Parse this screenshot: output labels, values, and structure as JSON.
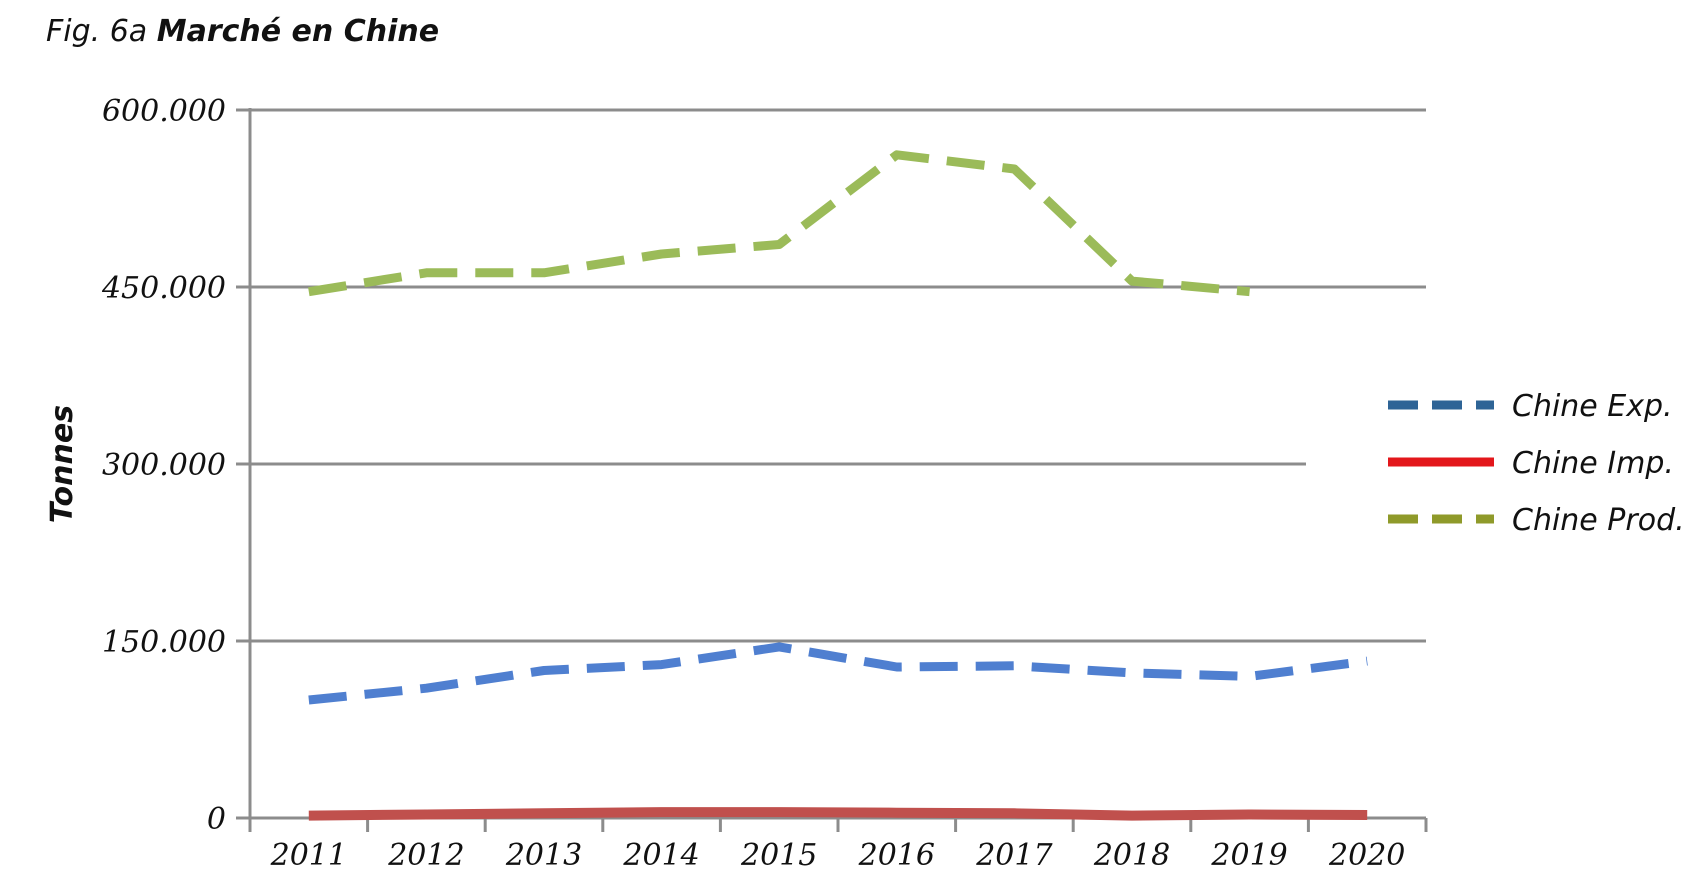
{
  "figure": {
    "prefix": "Fig. 6a",
    "title": "Marché en Chine"
  },
  "chart_data": {
    "type": "line",
    "title": "Fig. 6a Marché en Chine",
    "xlabel": "",
    "ylabel": "Tonnes",
    "categories": [
      "2011",
      "2012",
      "2013",
      "2014",
      "2015",
      "2016",
      "2017",
      "2018",
      "2019",
      "2020"
    ],
    "ylim": [
      0,
      600000
    ],
    "yticks": [
      0,
      150000,
      300000,
      450000,
      600000
    ],
    "ytick_labels": [
      "0",
      "150.000",
      "300.000",
      "450.000",
      "600.000"
    ],
    "grid": true,
    "legend_position": "right",
    "series": [
      {
        "name": "Chine Exp.",
        "values": [
          100000,
          110000,
          125000,
          130000,
          145000,
          128000,
          129000,
          123000,
          120000,
          133000
        ],
        "color": "#4f7fd0",
        "legend_color": "#2e6496",
        "style": "dashed"
      },
      {
        "name": "Chine Imp.",
        "values": [
          2000,
          3000,
          4000,
          5000,
          5000,
          4500,
          4000,
          2000,
          3000,
          2500
        ],
        "color": "#c0504d",
        "legend_color": "#e3171b",
        "style": "solid"
      },
      {
        "name": "Chine Prod.",
        "values": [
          446000,
          462000,
          462000,
          478000,
          486000,
          562000,
          550000,
          455000,
          446000,
          null
        ],
        "color": "#9bbb59",
        "legend_color": "#8f9a2a",
        "style": "dashed"
      }
    ]
  }
}
